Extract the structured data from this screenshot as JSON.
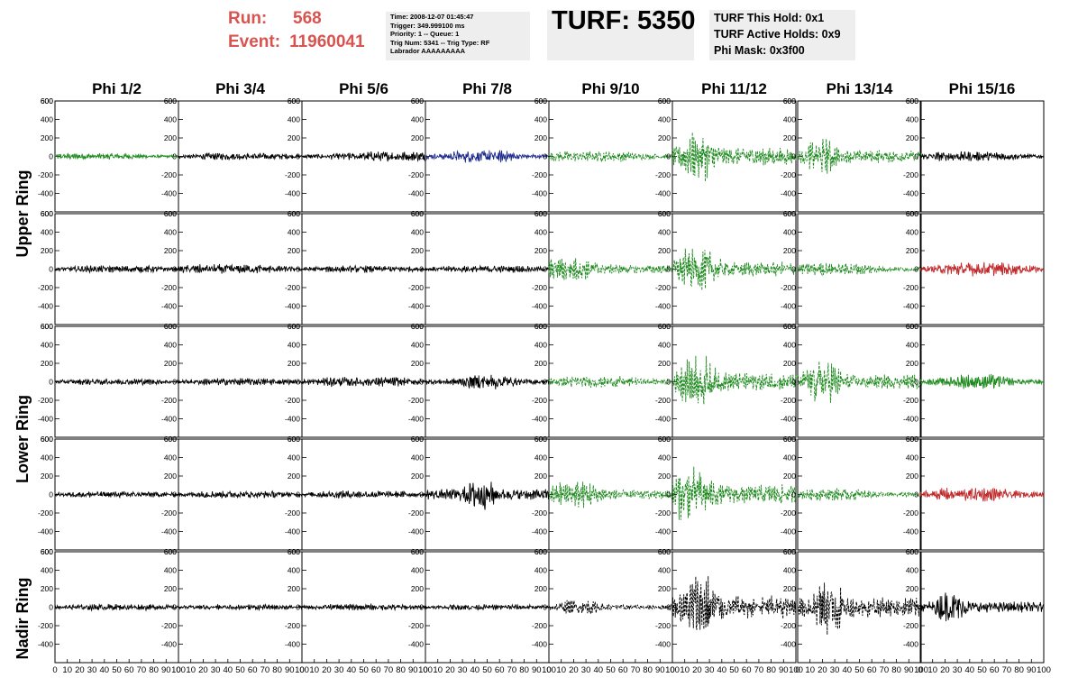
{
  "header": {
    "run_label": "Run:",
    "run_value": "568",
    "event_label": "Event:",
    "event_value": "11960041",
    "info_lines": [
      "Time: 2008-12-07 01:45:47",
      "Trigger: 349.999100 ms",
      "Priority: 1 -- Queue: 1",
      "Trig Num: 5341 -- Trig Type: RF",
      "Labrador AAAAAAAAA"
    ],
    "turf_title": "TURF: 5350",
    "turf_lines": [
      "TURF This Hold: 0x1",
      "TURF Active Holds: 0x9",
      "Phi Mask: 0x3f00"
    ]
  },
  "chart_data": {
    "type": "line",
    "columns": [
      "Phi 1/2",
      "Phi 3/4",
      "Phi 5/6",
      "Phi 7/8",
      "Phi 9/10",
      "Phi 11/12",
      "Phi 13/14",
      "Phi 15/16"
    ],
    "ring_labels": [
      "Upper Ring",
      "Lower Ring",
      "Nadir Ring"
    ],
    "rows": 5,
    "ylim": [
      -600,
      600
    ],
    "yticks": [
      -400,
      -200,
      0,
      200,
      400,
      600
    ],
    "ytick_labels": [
      "-400",
      "-200",
      "0",
      "200",
      "400",
      "600"
    ],
    "top_tick_label": "600",
    "xlim": [
      0,
      100
    ],
    "xticks": [
      0,
      10,
      20,
      30,
      40,
      50,
      60,
      70,
      80,
      90,
      100
    ],
    "xtick_labels": [
      "0",
      "10",
      "20",
      "30",
      "40",
      "50",
      "60",
      "70",
      "80",
      "90",
      "100"
    ],
    "colors": {
      "black": "#000000",
      "green": "#1e8a1e",
      "blue": "#1c2a8c",
      "red": "#c0282a"
    },
    "traces": [
      [
        {
          "color": "green",
          "amp": 45,
          "center": 30,
          "width": 40,
          "dash": false
        },
        {
          "color": "black",
          "amp": 50,
          "center": 50,
          "width": 40,
          "dash": false
        },
        {
          "color": "black",
          "amp": 70,
          "center": 70,
          "width": 40,
          "dash": false
        },
        {
          "color": "blue",
          "amp": 90,
          "center": 45,
          "width": 25,
          "dash": false
        },
        {
          "color": "green",
          "amp": 80,
          "center": 35,
          "width": 35,
          "dash": true
        },
        {
          "color": "green",
          "amp": 360,
          "center": 20,
          "width": 10,
          "dash": true
        },
        {
          "color": "green",
          "amp": 260,
          "center": 20,
          "width": 10,
          "dash": true
        },
        {
          "color": "black",
          "amp": 70,
          "center": 40,
          "width": 35,
          "dash": false
        }
      ],
      [
        {
          "color": "black",
          "amp": 50,
          "center": 50,
          "width": 40,
          "dash": false
        },
        {
          "color": "black",
          "amp": 70,
          "center": 40,
          "width": 40,
          "dash": false
        },
        {
          "color": "black",
          "amp": 50,
          "center": 50,
          "width": 40,
          "dash": false
        },
        {
          "color": "black",
          "amp": 50,
          "center": 50,
          "width": 40,
          "dash": false
        },
        {
          "color": "green",
          "amp": 170,
          "center": 15,
          "width": 20,
          "dash": true
        },
        {
          "color": "green",
          "amp": 300,
          "center": 20,
          "width": 14,
          "dash": true
        },
        {
          "color": "green",
          "amp": 90,
          "center": 30,
          "width": 30,
          "dash": true
        },
        {
          "color": "red",
          "amp": 100,
          "center": 50,
          "width": 30,
          "dash": false
        }
      ],
      [
        {
          "color": "black",
          "amp": 45,
          "center": 50,
          "width": 40,
          "dash": false
        },
        {
          "color": "black",
          "amp": 50,
          "center": 50,
          "width": 40,
          "dash": false
        },
        {
          "color": "black",
          "amp": 70,
          "center": 50,
          "width": 40,
          "dash": false
        },
        {
          "color": "black",
          "amp": 110,
          "center": 50,
          "width": 18,
          "dash": false
        },
        {
          "color": "green",
          "amp": 80,
          "center": 40,
          "width": 35,
          "dash": true
        },
        {
          "color": "green",
          "amp": 370,
          "center": 20,
          "width": 12,
          "dash": true
        },
        {
          "color": "green",
          "amp": 300,
          "center": 20,
          "width": 12,
          "dash": true
        },
        {
          "color": "green",
          "amp": 110,
          "center": 45,
          "width": 22,
          "dash": false
        }
      ],
      [
        {
          "color": "black",
          "amp": 45,
          "center": 50,
          "width": 40,
          "dash": false
        },
        {
          "color": "black",
          "amp": 50,
          "center": 50,
          "width": 40,
          "dash": false
        },
        {
          "color": "black",
          "amp": 55,
          "center": 50,
          "width": 40,
          "dash": false
        },
        {
          "color": "black",
          "amp": 220,
          "center": 45,
          "width": 10,
          "dash": false
        },
        {
          "color": "green",
          "amp": 190,
          "center": 20,
          "width": 18,
          "dash": true
        },
        {
          "color": "green",
          "amp": 400,
          "center": 15,
          "width": 12,
          "dash": true
        },
        {
          "color": "green",
          "amp": 85,
          "center": 30,
          "width": 28,
          "dash": true
        },
        {
          "color": "red",
          "amp": 100,
          "center": 40,
          "width": 30,
          "dash": false
        }
      ],
      [
        {
          "color": "black",
          "amp": 45,
          "center": 50,
          "width": 40,
          "dash": false
        },
        {
          "color": "black",
          "amp": 40,
          "center": 50,
          "width": 40,
          "dash": false
        },
        {
          "color": "black",
          "amp": 45,
          "center": 50,
          "width": 40,
          "dash": false
        },
        {
          "color": "black",
          "amp": 40,
          "center": 50,
          "width": 40,
          "dash": false
        },
        {
          "color": "black",
          "amp": 100,
          "center": 25,
          "width": 15,
          "dash": true
        },
        {
          "color": "black",
          "amp": 460,
          "center": 23,
          "width": 12,
          "dash": true
        },
        {
          "color": "black",
          "amp": 400,
          "center": 25,
          "width": 10,
          "dash": true
        },
        {
          "color": "black",
          "amp": 230,
          "center": 25,
          "width": 10,
          "dash": false
        }
      ]
    ]
  }
}
